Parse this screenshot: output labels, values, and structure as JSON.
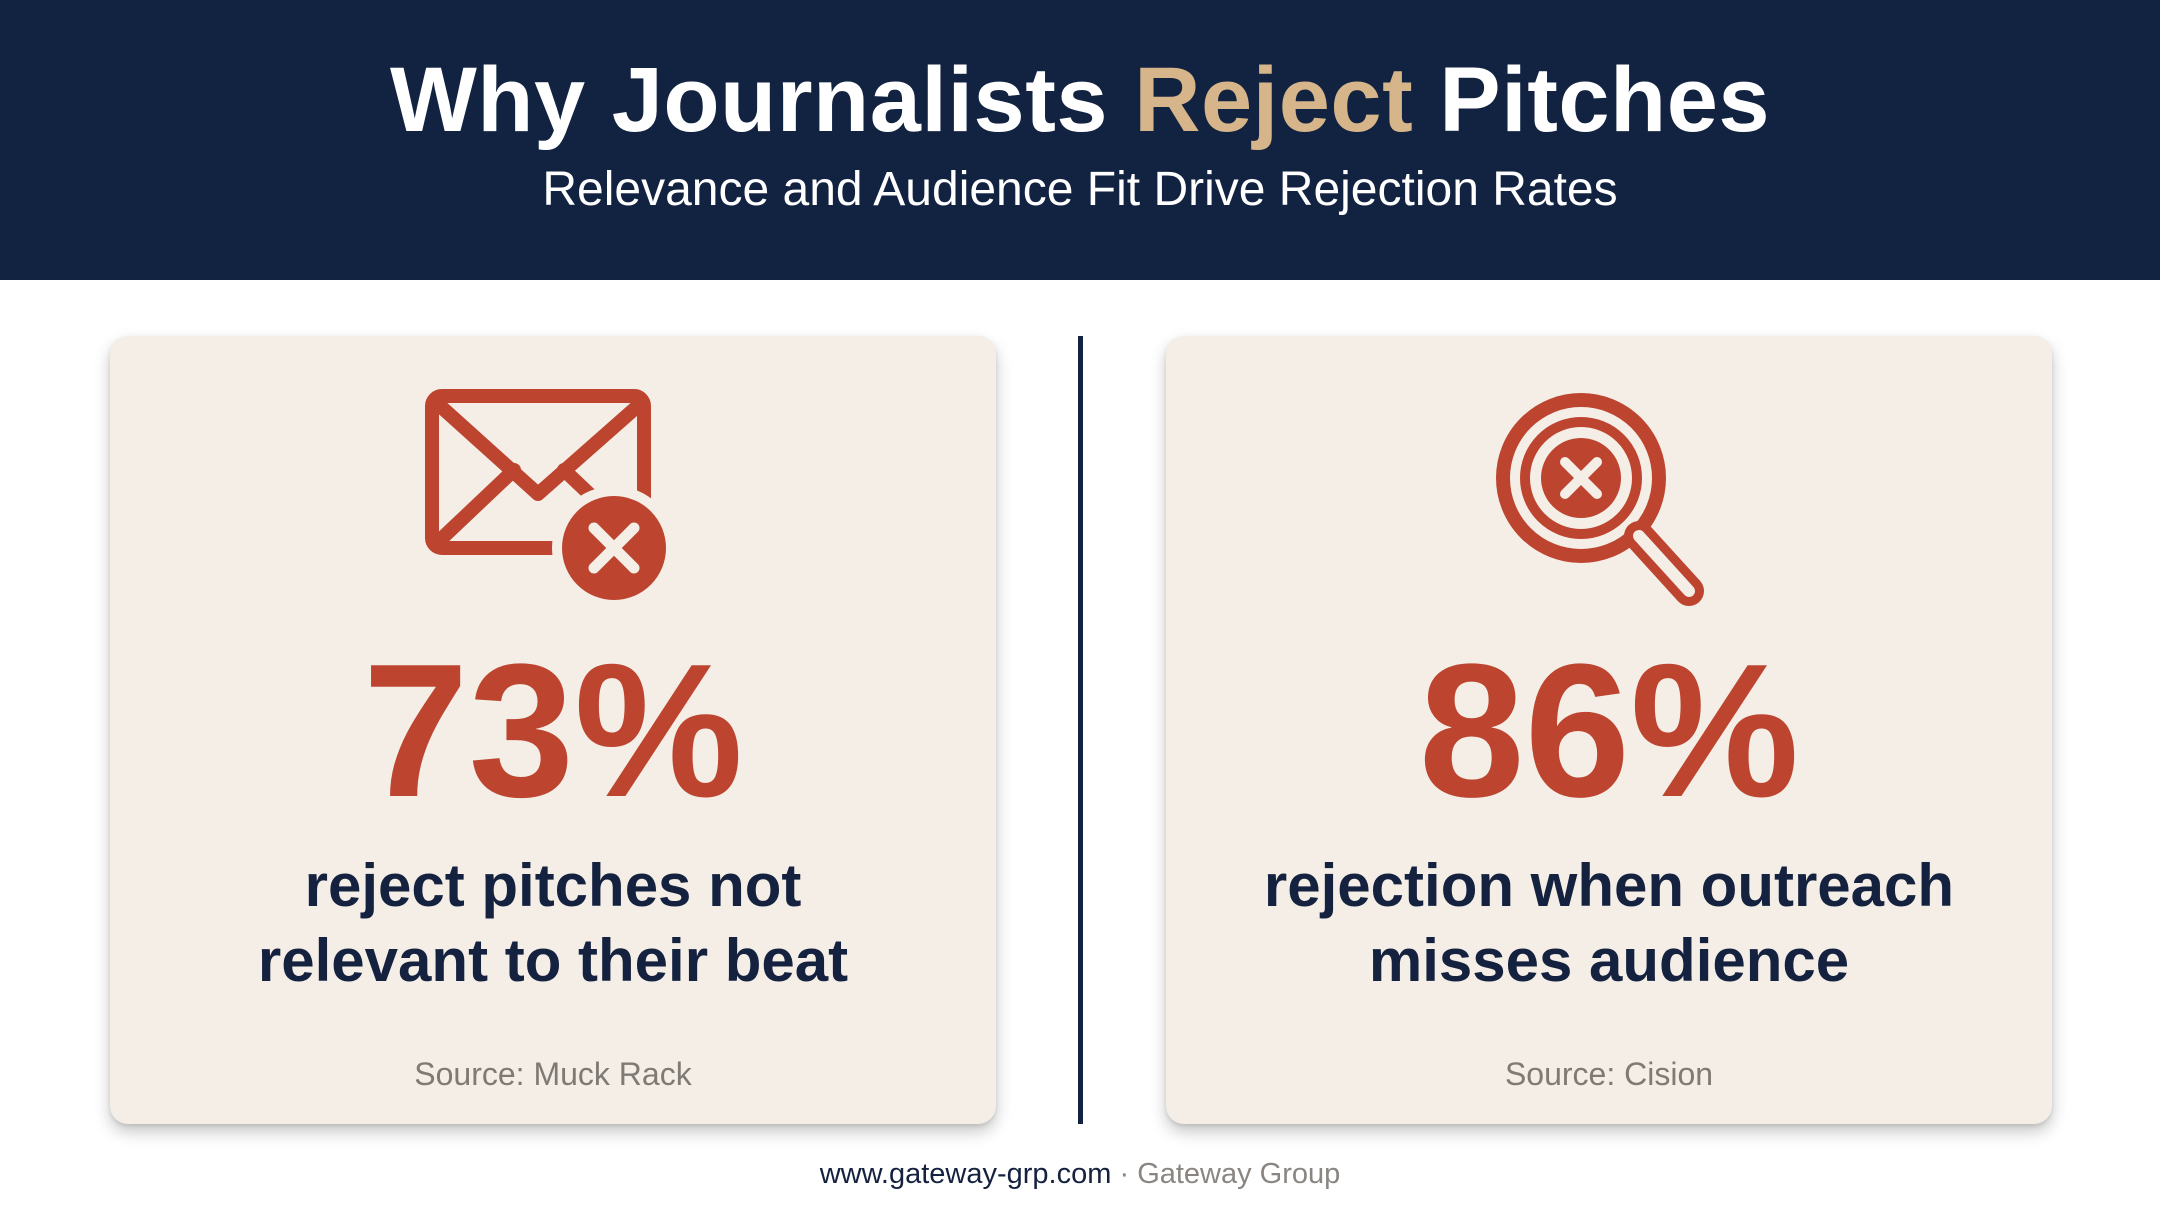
{
  "header": {
    "title_before": "Why Journalists ",
    "title_accent": "Reject",
    "title_after": " Pitches",
    "subtitle": "Relevance and Audience Fit Drive Rejection Rates"
  },
  "cards": [
    {
      "icon": "email-rejected-icon",
      "stat": "73%",
      "line1": "reject pitches not",
      "line2": "relevant to their beat",
      "source": "Source: Muck Rack"
    },
    {
      "icon": "search-rejected-icon",
      "stat": "86%",
      "line1": "rejection when outreach",
      "line2": "misses audience",
      "source": "Source: Cision"
    }
  ],
  "footer": {
    "site": "www.gateway-grp.com",
    "separator": " · ",
    "company": "Gateway Group"
  },
  "colors": {
    "navy": "#122241",
    "accent_gold": "#d5b589",
    "stat_red": "#bd4530",
    "card_bg": "#f4eee7"
  }
}
